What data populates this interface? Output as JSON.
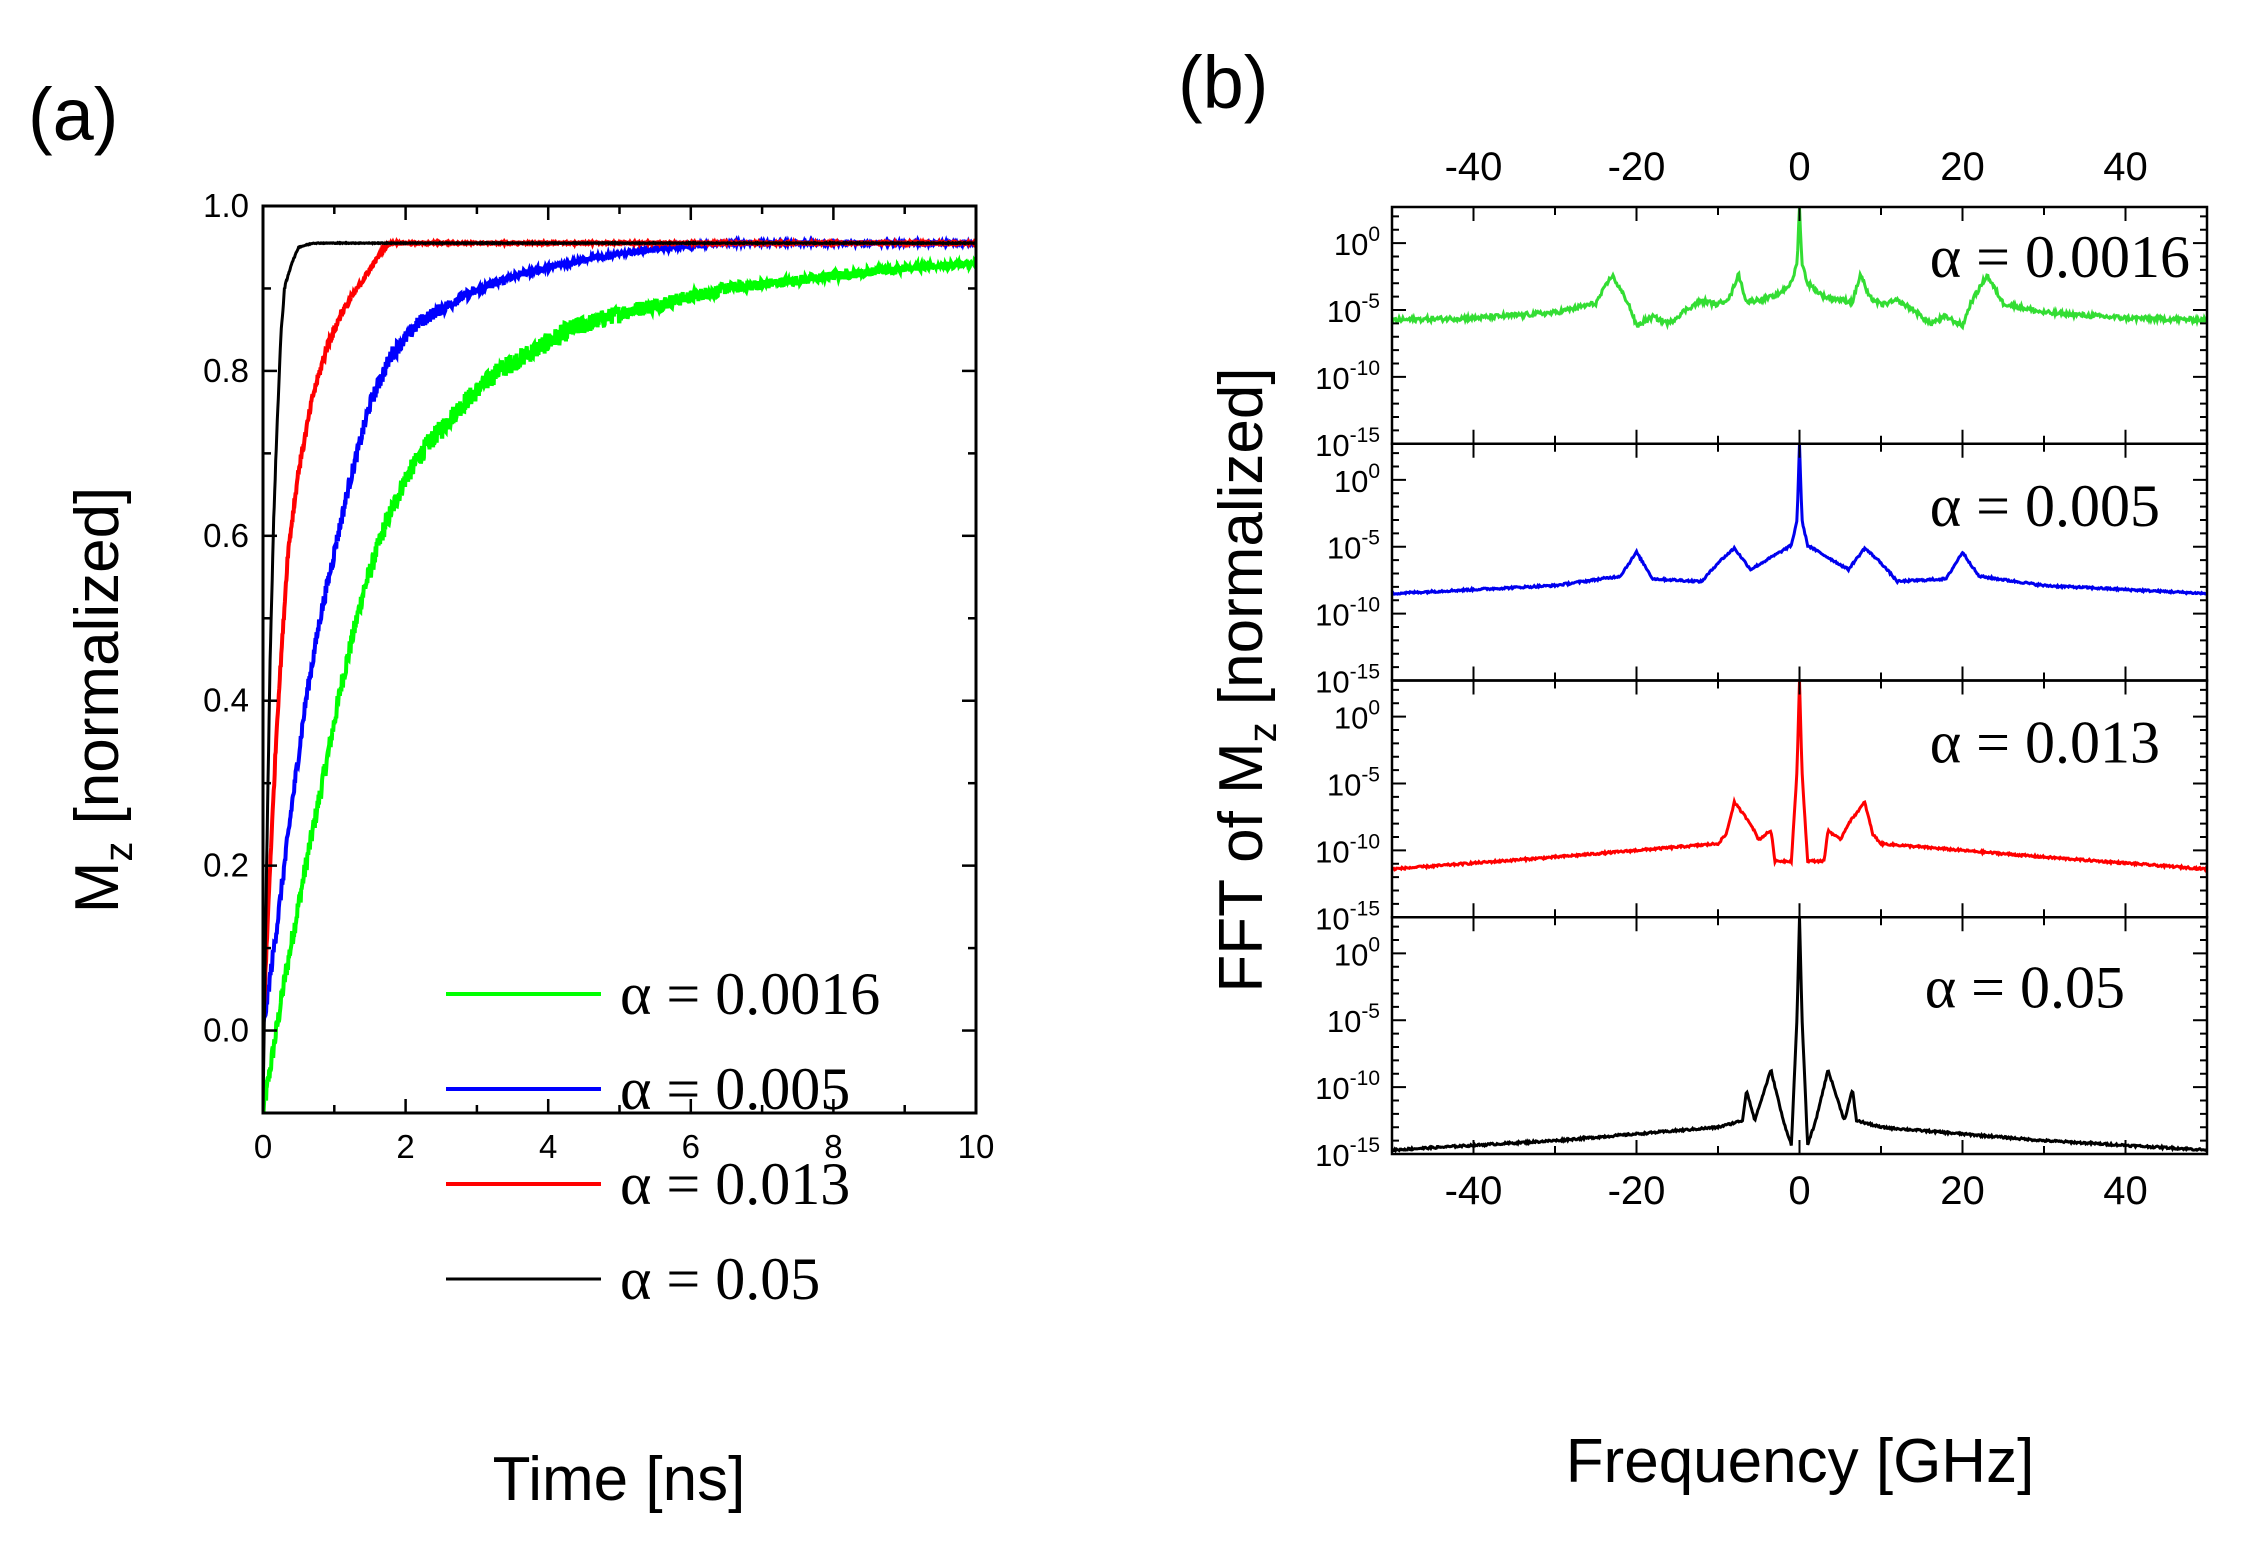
{
  "chart_data": [
    {
      "panel_label": "(a)",
      "type": "line",
      "xlabel": "Time [ns]",
      "ylabel": {
        "main": "M",
        "sub": "z",
        "rest": " [normalized]"
      },
      "xlim": [
        0,
        10
      ],
      "ylim": [
        -0.1,
        1.0
      ],
      "xticks": [
        "0",
        "2",
        "4",
        "6",
        "8",
        "10"
      ],
      "yticks": [
        "0.0",
        "0.2",
        "0.4",
        "0.6",
        "0.8",
        "1.0"
      ],
      "legend_position": "bottom-right",
      "series": [
        {
          "name": "α = 0.0016",
          "color": "#00ff00",
          "noise_amplitude": 0.012,
          "x": [
            0,
            0.3,
            0.6,
            0.9,
            1.1,
            1.4,
            1.7,
            2.0,
            2.3,
            2.8,
            3.3,
            3.8,
            4.3,
            5.0,
            5.5,
            6.5,
            7.0,
            8.0,
            9.0,
            10.0
          ],
          "y": [
            -0.1,
            0.06,
            0.2,
            0.33,
            0.42,
            0.53,
            0.61,
            0.67,
            0.71,
            0.76,
            0.8,
            0.825,
            0.85,
            0.87,
            0.88,
            0.9,
            0.905,
            0.915,
            0.925,
            0.93
          ]
        },
        {
          "name": "α = 0.005",
          "color": "#0000ff",
          "noise_amplitude": 0.009,
          "x": [
            0,
            0.2,
            0.4,
            0.6,
            0.8,
            1.0,
            1.2,
            1.5,
            1.8,
            2.2,
            2.8,
            3.5,
            4.5,
            5.5,
            6.5,
            8.0,
            10.0
          ],
          "y": [
            0.0,
            0.13,
            0.27,
            0.4,
            0.5,
            0.58,
            0.66,
            0.76,
            0.82,
            0.86,
            0.89,
            0.915,
            0.935,
            0.948,
            0.955,
            0.955,
            0.955
          ]
        },
        {
          "name": "α = 0.013",
          "color": "#ff0000",
          "noise_amplitude": 0.006,
          "x": [
            0,
            0.1,
            0.2,
            0.35,
            0.5,
            0.7,
            0.9,
            1.1,
            1.4,
            1.7,
            1.8,
            3.0,
            10.0
          ],
          "y": [
            0.0,
            0.2,
            0.38,
            0.58,
            0.68,
            0.77,
            0.83,
            0.87,
            0.91,
            0.95,
            0.955,
            0.955,
            0.955
          ]
        },
        {
          "name": "α = 0.05",
          "color": "#000000",
          "noise_amplitude": 0.003,
          "x": [
            0,
            0.05,
            0.1,
            0.15,
            0.2,
            0.25,
            0.3,
            0.4,
            0.5,
            0.7,
            1.0,
            10.0
          ],
          "y": [
            -0.1,
            0.2,
            0.45,
            0.62,
            0.74,
            0.84,
            0.9,
            0.93,
            0.95,
            0.955,
            0.955,
            0.955
          ]
        }
      ]
    },
    {
      "panel_label": "(b)",
      "type": "line",
      "xlabel": "Frequency [GHz]",
      "ylabel": {
        "main": "FFT of M",
        "sub": "z",
        "rest": " [normalized]"
      },
      "xlim": [
        -50,
        50
      ],
      "xticks": [
        "-40",
        "-20",
        "0",
        "20",
        "40"
      ],
      "yscale": "log",
      "ylim_log10": [
        -15,
        2.7
      ],
      "yticks_exponents": [
        "0",
        "-5",
        "-10",
        "-15"
      ],
      "panels": [
        {
          "name": "α = 0.0016",
          "color": "#33dd33",
          "f": [
            -50,
            -40,
            -30,
            -25,
            -23,
            -21,
            -20,
            -18,
            -16,
            -14,
            -12,
            -10,
            -8.5,
            -7.5,
            -6.5,
            -3,
            -1,
            -0.3,
            0,
            0.3,
            1,
            3,
            6.5,
            7.5,
            8.5,
            10,
            12,
            14,
            16,
            18,
            20,
            21,
            23,
            25,
            30,
            40,
            50
          ],
          "log10": [
            -5.75,
            -5.6,
            -5.2,
            -4.5,
            -2.4,
            -4.5,
            -6.2,
            -5.5,
            -6.0,
            -5.0,
            -4.3,
            -4.6,
            -4.0,
            -2.3,
            -4.4,
            -4.0,
            -3.0,
            -1.5,
            2.7,
            -1.5,
            -3.0,
            -4.0,
            -4.4,
            -2.3,
            -4.0,
            -4.6,
            -4.3,
            -5.0,
            -6.0,
            -5.5,
            -6.2,
            -4.5,
            -2.4,
            -4.5,
            -5.2,
            -5.6,
            -5.75
          ]
        },
        {
          "name": "α = 0.005",
          "color": "#0000ee",
          "f": [
            -50,
            -30,
            -22,
            -20,
            -18,
            -12,
            -10,
            -8,
            -6,
            -1,
            -0.3,
            0,
            0.3,
            1,
            6,
            8,
            10,
            12,
            18,
            20,
            22,
            30,
            50
          ],
          "log10": [
            -8.5,
            -7.9,
            -7.2,
            -5.4,
            -7.4,
            -7.6,
            -6.2,
            -5.1,
            -6.7,
            -4.9,
            -3.0,
            2.7,
            -3.0,
            -4.9,
            -6.7,
            -5.1,
            -6.2,
            -7.6,
            -7.4,
            -5.4,
            -7.2,
            -7.9,
            -8.5
          ]
        },
        {
          "name": "α = 0.013",
          "color": "#ff0000",
          "f": [
            -50,
            -30,
            -10,
            -9,
            -8,
            -6,
            -5,
            -3.5,
            -3,
            -1,
            -0.3,
            0,
            0.3,
            1,
            3,
            3.5,
            5,
            6,
            8,
            9,
            10,
            30,
            50
          ],
          "log10": [
            -11.4,
            -10.5,
            -9.5,
            -8.8,
            -6.4,
            -8.0,
            -9.2,
            -8.5,
            -10.8,
            -10.8,
            -4.0,
            2.7,
            -4.0,
            -10.8,
            -10.8,
            -8.5,
            -9.2,
            -8.0,
            -6.4,
            -8.8,
            -9.5,
            -10.5,
            -11.4
          ]
        },
        {
          "name": "α = 0.05",
          "color": "#000000",
          "f": [
            -50,
            -30,
            -10,
            -7,
            -6.5,
            -5.5,
            -3.5,
            -2,
            -1,
            -0.3,
            0,
            0.3,
            1,
            2,
            3.5,
            5.5,
            6.5,
            7,
            10,
            30,
            50
          ],
          "log10": [
            -14.7,
            -14.0,
            -13.0,
            -12.5,
            -10.2,
            -12.5,
            -8.7,
            -12.5,
            -14.3,
            -4.7,
            2.7,
            -4.7,
            -14.3,
            -12.5,
            -8.7,
            -12.5,
            -10.2,
            -12.5,
            -13.0,
            -14.0,
            -14.7
          ]
        }
      ]
    }
  ]
}
